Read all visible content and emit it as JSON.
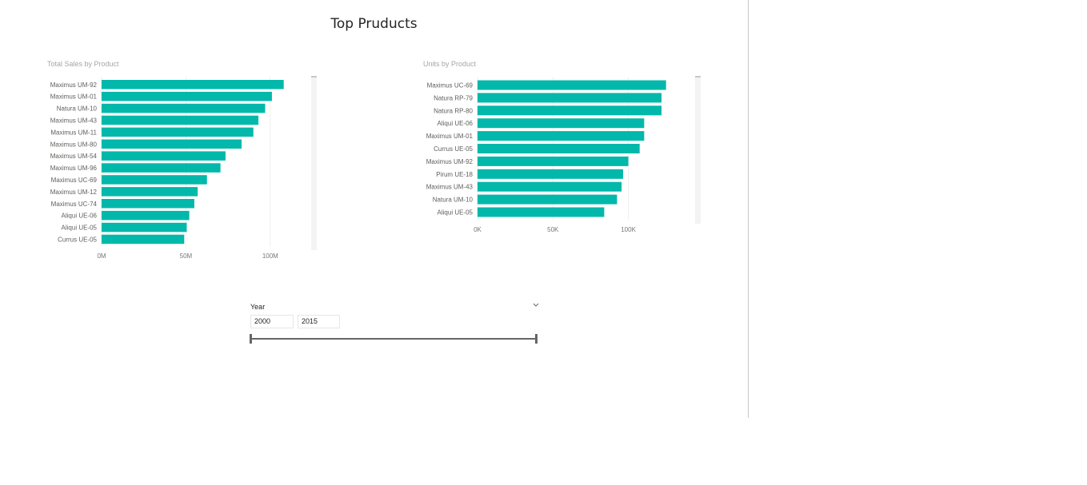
{
  "page": {
    "title": "Top Pruducts"
  },
  "visuals": {
    "sales": {
      "title": "Total Sales by Product"
    },
    "units": {
      "title": "Units by Product"
    }
  },
  "slicer": {
    "label": "Year",
    "start": "2000",
    "end": "2015",
    "icon": "chevron-down-icon"
  },
  "colors": {
    "bar": "#01B8AA",
    "grid": "#eeeeee"
  },
  "chart_data": [
    {
      "type": "bar",
      "orientation": "horizontal",
      "title": "Total Sales by Product",
      "categories": [
        "Maximus UM-92",
        "Maximus UM-01",
        "Natura UM-10",
        "Maximus UM-43",
        "Maximus UM-11",
        "Maximus UM-80",
        "Maximus UM-54",
        "Maximus UM-96",
        "Maximus UC-69",
        "Maximus UM-12",
        "Maximus UC-74",
        "Aliqui UE-06",
        "Aliqui UE-05",
        "Currus UE-05"
      ],
      "values": [
        108000000,
        101000000,
        97000000,
        93000000,
        90000000,
        83000000,
        73500000,
        70500000,
        62500000,
        57000000,
        55000000,
        52000000,
        50500000,
        49000000
      ],
      "xlim": [
        0,
        120000000
      ],
      "ticks": [
        0,
        50000000,
        100000000
      ],
      "tick_labels": [
        "0M",
        "50M",
        "100M"
      ],
      "grid": true
    },
    {
      "type": "bar",
      "orientation": "horizontal",
      "title": "Units by Product",
      "categories": [
        "Maximus UC-69",
        "Natura RP-79",
        "Natura RP-80",
        "Aliqui UE-06",
        "Maximus UM-01",
        "Currus UE-05",
        "Maximus UM-92",
        "Pirum UE-18",
        "Maximus UM-43",
        "Natura UM-10",
        "Aliqui UE-05"
      ],
      "values": [
        125000,
        122000,
        122000,
        110500,
        110500,
        107500,
        100000,
        96500,
        95500,
        92500,
        84000
      ],
      "xlim": [
        0,
        140000
      ],
      "ticks": [
        0,
        50000,
        100000
      ],
      "tick_labels": [
        "0K",
        "50K",
        "100K"
      ],
      "grid": true
    }
  ]
}
